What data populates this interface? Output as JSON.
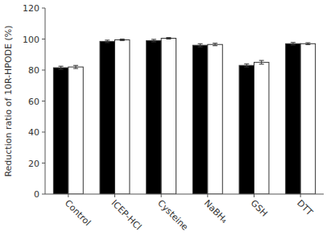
{
  "chart_data": {
    "type": "bar",
    "categories": [
      "Control",
      "ICEP-HCl",
      "Cysteine",
      "NaBH₄",
      "GSH",
      "DTT"
    ],
    "series": [
      {
        "color": "#000000",
        "values": [
          81.5,
          98.5,
          99.0,
          96.0,
          83.0,
          97.0
        ],
        "errors": [
          1.0,
          0.8,
          0.8,
          1.0,
          1.0,
          0.8
        ]
      },
      {
        "color": "#ffffff",
        "values": [
          82.0,
          99.5,
          100.5,
          96.5,
          85.0,
          97.0
        ],
        "errors": [
          1.0,
          0.5,
          0.5,
          0.8,
          1.2,
          0.6
        ]
      }
    ],
    "ylabel": "Reduction ratio of 10R-HPODE (%)",
    "ylim": [
      0,
      120
    ],
    "yticks": [
      0,
      20,
      40,
      60,
      80,
      100,
      120
    ],
    "grid": false
  }
}
